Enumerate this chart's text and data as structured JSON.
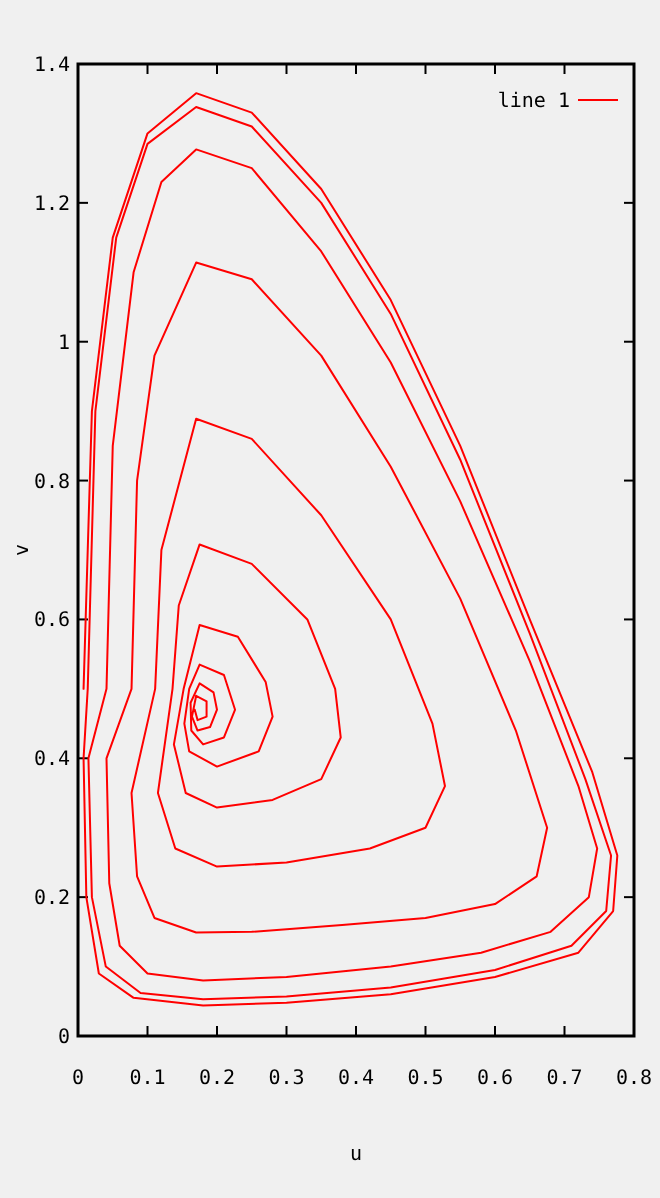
{
  "chart_data": {
    "type": "line",
    "xlabel": "u",
    "ylabel": "v",
    "xlim": [
      0,
      0.8
    ],
    "xticks": [
      0,
      0.1,
      0.2,
      0.3,
      0.4,
      0.5,
      0.6,
      0.7,
      0.8
    ],
    "ylim": [
      0,
      1.4
    ],
    "yticks": [
      0,
      0.2,
      0.4,
      0.6,
      0.8,
      1,
      1.2,
      1.4
    ],
    "legend": "top right",
    "marker": "none",
    "line_style": "solid",
    "series": [
      {
        "name": "line 1",
        "color": "#ff0000",
        "x": [
          0.008,
          0.02,
          0.05,
          0.1,
          0.17,
          0.25,
          0.35,
          0.45,
          0.55,
          0.65,
          0.74,
          0.776,
          0.77,
          0.72,
          0.6,
          0.45,
          0.3,
          0.18,
          0.08,
          0.03,
          0.012,
          0.008,
          0.014,
          0.025,
          0.055,
          0.1,
          0.17,
          0.25,
          0.35,
          0.45,
          0.55,
          0.65,
          0.73,
          0.767,
          0.76,
          0.71,
          0.6,
          0.45,
          0.3,
          0.18,
          0.09,
          0.04,
          0.02,
          0.015,
          0.041,
          0.05,
          0.08,
          0.12,
          0.17,
          0.25,
          0.35,
          0.45,
          0.55,
          0.65,
          0.72,
          0.747,
          0.735,
          0.68,
          0.58,
          0.45,
          0.3,
          0.18,
          0.1,
          0.06,
          0.045,
          0.041,
          0.077,
          0.085,
          0.11,
          0.17,
          0.25,
          0.35,
          0.45,
          0.55,
          0.63,
          0.675,
          0.66,
          0.6,
          0.5,
          0.38,
          0.25,
          0.17,
          0.11,
          0.085,
          0.077,
          0.111,
          0.12,
          0.17,
          0.25,
          0.35,
          0.45,
          0.51,
          0.528,
          0.5,
          0.42,
          0.3,
          0.2,
          0.14,
          0.115,
          0.136,
          0.145,
          0.175,
          0.25,
          0.33,
          0.37,
          0.378,
          0.35,
          0.28,
          0.2,
          0.155,
          0.138,
          0.152,
          0.175,
          0.23,
          0.27,
          0.28,
          0.26,
          0.2,
          0.16,
          0.153,
          0.16,
          0.175,
          0.21,
          0.226,
          0.21,
          0.18,
          0.163,
          0.162,
          0.175,
          0.195,
          0.2,
          0.19,
          0.172,
          0.164,
          0.17,
          0.185,
          0.185,
          0.172,
          0.168
        ],
        "values": [
          0.5,
          0.9,
          1.15,
          1.3,
          1.358,
          1.33,
          1.22,
          1.06,
          0.85,
          0.6,
          0.38,
          0.26,
          0.18,
          0.12,
          0.085,
          0.06,
          0.048,
          0.044,
          0.055,
          0.09,
          0.2,
          0.4,
          0.5,
          0.9,
          1.15,
          1.285,
          1.338,
          1.31,
          1.2,
          1.04,
          0.83,
          0.58,
          0.37,
          0.26,
          0.18,
          0.13,
          0.095,
          0.07,
          0.057,
          0.053,
          0.062,
          0.1,
          0.2,
          0.4,
          0.5,
          0.85,
          1.1,
          1.23,
          1.277,
          1.25,
          1.13,
          0.97,
          0.77,
          0.54,
          0.36,
          0.27,
          0.2,
          0.15,
          0.12,
          0.1,
          0.085,
          0.08,
          0.09,
          0.13,
          0.22,
          0.4,
          0.5,
          0.8,
          0.98,
          1.114,
          1.09,
          0.98,
          0.82,
          0.63,
          0.44,
          0.3,
          0.23,
          0.19,
          0.17,
          0.16,
          0.15,
          0.149,
          0.17,
          0.23,
          0.35,
          0.5,
          0.7,
          0.889,
          0.86,
          0.75,
          0.6,
          0.45,
          0.36,
          0.3,
          0.27,
          0.25,
          0.244,
          0.27,
          0.35,
          0.5,
          0.62,
          0.708,
          0.68,
          0.6,
          0.5,
          0.43,
          0.37,
          0.34,
          0.329,
          0.35,
          0.42,
          0.5,
          0.592,
          0.575,
          0.51,
          0.46,
          0.41,
          0.388,
          0.41,
          0.45,
          0.5,
          0.535,
          0.52,
          0.47,
          0.43,
          0.42,
          0.44,
          0.48,
          0.508,
          0.495,
          0.47,
          0.445,
          0.44,
          0.46,
          0.49,
          0.482,
          0.46,
          0.455,
          0.47
        ]
      }
    ]
  }
}
